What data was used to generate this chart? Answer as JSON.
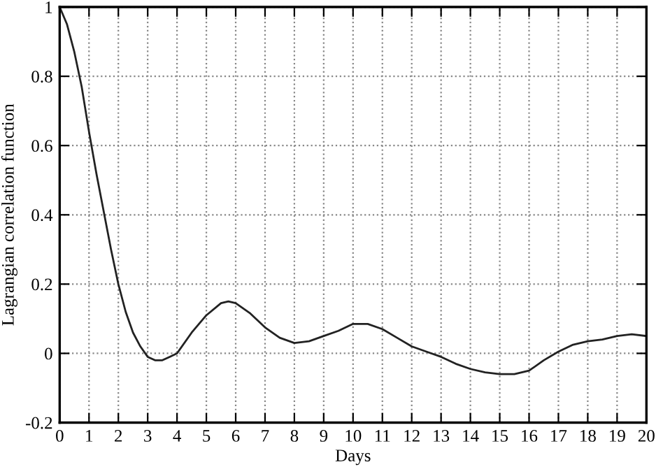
{
  "chart_data": {
    "type": "line",
    "xlabel": "Days",
    "ylabel": "Lagrangian correlation function",
    "xlim": [
      0,
      20
    ],
    "ylim": [
      -0.2,
      1
    ],
    "xticks": [
      0,
      1,
      2,
      3,
      4,
      5,
      6,
      7,
      8,
      9,
      10,
      11,
      12,
      13,
      14,
      15,
      16,
      17,
      18,
      19,
      20
    ],
    "yticks": [
      -0.2,
      0,
      0.2,
      0.4,
      0.6,
      0.8,
      1
    ],
    "grid": true,
    "line_style": "solid",
    "series": [
      {
        "color": "#222222",
        "x": [
          0,
          0.25,
          0.5,
          0.75,
          1,
          1.25,
          1.5,
          1.75,
          2,
          2.25,
          2.5,
          2.75,
          3,
          3.25,
          3.5,
          3.75,
          4,
          4.5,
          5,
          5.5,
          5.75,
          6,
          6.5,
          7,
          7.5,
          8,
          8.5,
          9,
          9.5,
          10,
          10.5,
          11,
          11.5,
          12,
          12.5,
          13,
          13.5,
          14,
          14.5,
          15,
          15.5,
          16,
          16.5,
          17,
          17.5,
          18,
          18.5,
          19,
          19.5,
          20
        ],
        "values": [
          1.0,
          0.95,
          0.87,
          0.77,
          0.64,
          0.52,
          0.41,
          0.3,
          0.2,
          0.12,
          0.06,
          0.02,
          -0.01,
          -0.02,
          -0.02,
          -0.01,
          0.0,
          0.06,
          0.11,
          0.145,
          0.15,
          0.145,
          0.115,
          0.075,
          0.045,
          0.03,
          0.035,
          0.05,
          0.065,
          0.085,
          0.085,
          0.07,
          0.045,
          0.02,
          0.005,
          -0.01,
          -0.03,
          -0.045,
          -0.055,
          -0.06,
          -0.06,
          -0.05,
          -0.02,
          0.005,
          0.025,
          0.035,
          0.04,
          0.05,
          0.055,
          0.05
        ]
      }
    ]
  }
}
